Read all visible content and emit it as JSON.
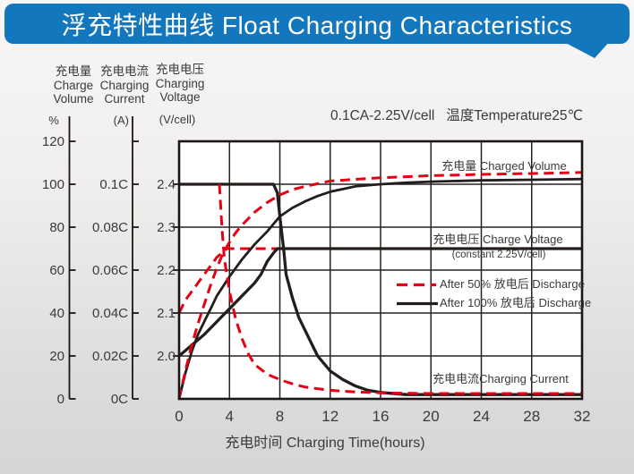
{
  "header": {
    "title": "浮充特性曲线 Float Charging Characteristics",
    "bg_color": "#1377bd",
    "text_color": "#ffffff"
  },
  "condition_note": "0.1CA-2.25V/cell   温度Temperature25℃",
  "axes": {
    "charge_volume": {
      "title_zh": "充电量",
      "title_en1": "Charge",
      "title_en2": "Volume",
      "unit": "%",
      "ticks": [
        "0",
        "20",
        "40",
        "60",
        "80",
        "100",
        "120"
      ]
    },
    "charging_current": {
      "title_zh": "充电电流",
      "title_en1": "Charging",
      "title_en2": "Current",
      "unit": "(A)",
      "ticks": [
        "0C",
        "0.02C",
        "0.04C",
        "0.06C",
        "0.08C",
        "0.1C"
      ]
    },
    "charging_voltage": {
      "title_zh": "充电电压",
      "title_en1": "Charging",
      "title_en2": "Voltage",
      "unit": "(V/cell)",
      "ticks": [
        "2.0",
        "2.1",
        "2.2",
        "2.3",
        "2.4"
      ]
    },
    "time": {
      "title": "充电时间 Charging Time(hours)",
      "ticks": [
        "0",
        "4",
        "8",
        "12",
        "16",
        "20",
        "24",
        "28",
        "32"
      ]
    }
  },
  "labels": {
    "charged_volume": "充电量 Charged Volume",
    "charge_voltage": "充电电压 Charge Voltage",
    "charge_voltage_sub": "(constant 2.25V/cell)",
    "charging_current": "充电电流Charging Current"
  },
  "legend": [
    {
      "label": "After 50% 放电后 Discharge",
      "style": "dashed",
      "color": "#e60014"
    },
    {
      "label": "After 100% 放电后 Discharge",
      "style": "solid",
      "color": "#231d1b"
    }
  ],
  "chart_data": {
    "type": "line",
    "title": "浮充特性曲线 Float Charging Characteristics",
    "condition": "0.1CA-2.25V/cell, 温度 Temperature 25℃",
    "xlabel": "充电时间 Charging Time(hours)",
    "xlim": [
      0,
      32
    ],
    "x_ticks": [
      0,
      4,
      8,
      12,
      16,
      20,
      24,
      28,
      32
    ],
    "grid": true,
    "legend_position": "inside-right",
    "y_axes": [
      {
        "id": "percent",
        "label": "充电量 Charge Volume",
        "unit": "%",
        "range": [
          0,
          120
        ]
      },
      {
        "id": "current",
        "label": "充电电流 Charging Current",
        "unit": "CA",
        "range": [
          0,
          0.12
        ]
      },
      {
        "id": "voltage",
        "label": "充电电压 Charging Voltage",
        "unit": "V/cell",
        "range": [
          1.9,
          2.5
        ]
      }
    ],
    "series": [
      {
        "name": "Charge Voltage - After 50% Discharge",
        "group": "After 50% 放电后 Discharge",
        "axis": "voltage",
        "color": "#e60014",
        "dash": "11,6.5",
        "width": 3,
        "points": [
          [
            0,
            2.1
          ],
          [
            0.5,
            2.13
          ],
          [
            1,
            2.15
          ],
          [
            1.5,
            2.17
          ],
          [
            2,
            2.19
          ],
          [
            2.5,
            2.21
          ],
          [
            3,
            2.23
          ],
          [
            3.5,
            2.243
          ],
          [
            3.8,
            2.25
          ],
          [
            8,
            2.25
          ],
          [
            16,
            2.25
          ],
          [
            32,
            2.25
          ]
        ]
      },
      {
        "name": "Charge Voltage - After 100% Discharge",
        "group": "After 100% 放电后 Discharge",
        "axis": "voltage",
        "color": "#231d1b",
        "dash": null,
        "width": 3.3,
        "points": [
          [
            0,
            2.0
          ],
          [
            1,
            2.025
          ],
          [
            2,
            2.05
          ],
          [
            3,
            2.08
          ],
          [
            4,
            2.11
          ],
          [
            5,
            2.14
          ],
          [
            6,
            2.17
          ],
          [
            6.5,
            2.19
          ],
          [
            7,
            2.22
          ],
          [
            7.5,
            2.24
          ],
          [
            7.8,
            2.25
          ],
          [
            16,
            2.25
          ],
          [
            32,
            2.25
          ]
        ]
      },
      {
        "name": "Charging Current - After 100% Discharge",
        "group": "After 100% 放电后 Discharge",
        "axis": "current",
        "color": "#231d1b",
        "dash": null,
        "width": 3.3,
        "points": [
          [
            0,
            0.1
          ],
          [
            7.5,
            0.1
          ],
          [
            7.8,
            0.096
          ],
          [
            8,
            0.085
          ],
          [
            8.3,
            0.07
          ],
          [
            8.5,
            0.058
          ],
          [
            9,
            0.047
          ],
          [
            9.5,
            0.038
          ],
          [
            10,
            0.032
          ],
          [
            11,
            0.02
          ],
          [
            12,
            0.013
          ],
          [
            13,
            0.009
          ],
          [
            14,
            0.006
          ],
          [
            15,
            0.004
          ],
          [
            16,
            0.003
          ],
          [
            18,
            0.002
          ],
          [
            20,
            0.002
          ],
          [
            24,
            0.002
          ],
          [
            28,
            0.002
          ],
          [
            32,
            0.002
          ]
        ]
      },
      {
        "name": "Charged Volume - After 100% Discharge",
        "group": "After 100% 放电后 Discharge",
        "axis": "percent",
        "color": "#231d1b",
        "dash": null,
        "width": 2.8,
        "points": [
          [
            0,
            0
          ],
          [
            0.5,
            12
          ],
          [
            1,
            22
          ],
          [
            1.5,
            30
          ],
          [
            2,
            36
          ],
          [
            2.5,
            42
          ],
          [
            3,
            48
          ],
          [
            4,
            57
          ],
          [
            5,
            65
          ],
          [
            6,
            72
          ],
          [
            7,
            78
          ],
          [
            8,
            85
          ],
          [
            9,
            89
          ],
          [
            10,
            92
          ],
          [
            11,
            94.5
          ],
          [
            12,
            96.5
          ],
          [
            14,
            99
          ],
          [
            16,
            100
          ],
          [
            18,
            100.7
          ],
          [
            20,
            101.2
          ],
          [
            24,
            101.8
          ],
          [
            28,
            102.1
          ],
          [
            32,
            102.4
          ]
        ]
      },
      {
        "name": "Charged Volume - After 50% Discharge",
        "group": "After 50% 放电后 Discharge",
        "axis": "percent",
        "color": "#e60014",
        "dash": "11,6.5",
        "width": 3,
        "points": [
          [
            0,
            0
          ],
          [
            0.5,
            13
          ],
          [
            1,
            25
          ],
          [
            1.5,
            35
          ],
          [
            2,
            44
          ],
          [
            2.5,
            53
          ],
          [
            3,
            61
          ],
          [
            3.5,
            68
          ],
          [
            4,
            73
          ],
          [
            4.5,
            77.5
          ],
          [
            5,
            81
          ],
          [
            6,
            87
          ],
          [
            7,
            91.5
          ],
          [
            8,
            95
          ],
          [
            9,
            97.5
          ],
          [
            10,
            99
          ],
          [
            12,
            101.5
          ],
          [
            14,
            102.3
          ],
          [
            16,
            103
          ],
          [
            20,
            104
          ],
          [
            24,
            104.6
          ],
          [
            28,
            105
          ],
          [
            32,
            105.5
          ]
        ]
      },
      {
        "name": "Charging Current - After 50% Discharge",
        "group": "After 50% 放电后 Discharge",
        "axis": "current",
        "color": "#e60014",
        "dash": "11,6.5",
        "width": 3,
        "draw_from": 3.2,
        "points": [
          [
            0,
            0.1
          ],
          [
            3.2,
            0.1
          ],
          [
            3.4,
            0.08
          ],
          [
            3.6,
            0.065
          ],
          [
            4,
            0.05
          ],
          [
            4.5,
            0.037
          ],
          [
            5,
            0.028
          ],
          [
            5.5,
            0.021
          ],
          [
            6,
            0.016
          ],
          [
            7,
            0.0115
          ],
          [
            8,
            0.009
          ],
          [
            9,
            0.007
          ],
          [
            10,
            0.0055
          ],
          [
            12,
            0.004
          ],
          [
            14,
            0.0032
          ],
          [
            16,
            0.0028
          ],
          [
            20,
            0.0025
          ],
          [
            24,
            0.0025
          ],
          [
            28,
            0.0025
          ],
          [
            32,
            0.0025
          ]
        ]
      }
    ]
  }
}
